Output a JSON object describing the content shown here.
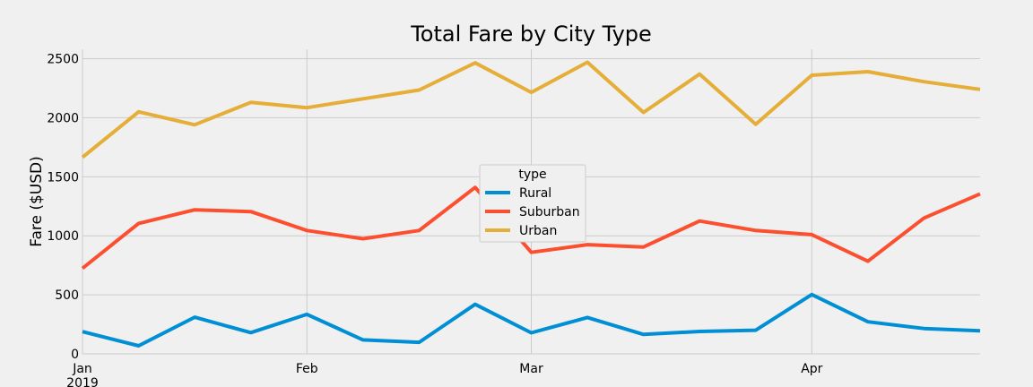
{
  "chart_data": {
    "type": "line",
    "title": "Total Fare by City Type",
    "ylabel": "Fare ($USD)",
    "xlabel": "",
    "ylim": [
      0,
      2580
    ],
    "y_ticks": [
      0,
      500,
      1000,
      1500,
      2000,
      2500
    ],
    "x_ticks": [
      {
        "label": "Jan",
        "sublabel": "2019",
        "x": 0
      },
      {
        "label": "Feb",
        "sublabel": "",
        "x": 4
      },
      {
        "label": "Mar",
        "sublabel": "",
        "x": 8
      },
      {
        "label": "Apr",
        "sublabel": "",
        "x": 13
      }
    ],
    "x": [
      0,
      1,
      2,
      3,
      4,
      5,
      6,
      7,
      8,
      9,
      10,
      11,
      12,
      13,
      14,
      15,
      16
    ],
    "xlim": [
      0,
      16
    ],
    "legend": {
      "title": "type",
      "placement": "center"
    },
    "grid": true,
    "series": [
      {
        "name": "Rural",
        "color": "#008fd5",
        "values": [
          188,
          68,
          310,
          180,
          335,
          118,
          98,
          420,
          178,
          308,
          165,
          190,
          200,
          502,
          272,
          215,
          195
        ]
      },
      {
        "name": "Suburban",
        "color": "#fc4f30",
        "values": [
          725,
          1105,
          1220,
          1205,
          1045,
          975,
          1045,
          1410,
          860,
          925,
          905,
          1125,
          1045,
          1010,
          785,
          1150,
          1355
        ]
      },
      {
        "name": "Urban",
        "color": "#e5ae38",
        "values": [
          1665,
          2050,
          1940,
          2130,
          2085,
          2160,
          2235,
          2465,
          2215,
          2470,
          2045,
          2370,
          1945,
          2360,
          2390,
          2305,
          2240
        ]
      }
    ]
  }
}
